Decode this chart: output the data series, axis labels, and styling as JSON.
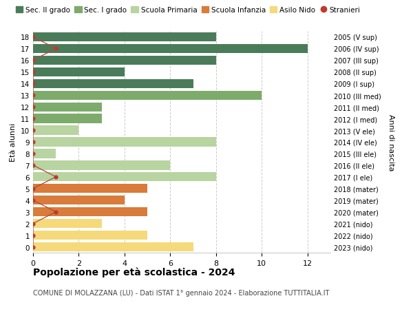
{
  "ages": [
    18,
    17,
    16,
    15,
    14,
    13,
    12,
    11,
    10,
    9,
    8,
    7,
    6,
    5,
    4,
    3,
    2,
    1,
    0
  ],
  "right_labels": [
    "2005 (V sup)",
    "2006 (IV sup)",
    "2007 (III sup)",
    "2008 (II sup)",
    "2009 (I sup)",
    "2010 (III med)",
    "2011 (II med)",
    "2012 (I med)",
    "2013 (V ele)",
    "2014 (IV ele)",
    "2015 (III ele)",
    "2016 (II ele)",
    "2017 (I ele)",
    "2018 (mater)",
    "2019 (mater)",
    "2020 (mater)",
    "2021 (nido)",
    "2022 (nido)",
    "2023 (nido)"
  ],
  "bar_values": [
    8,
    12,
    8,
    4,
    7,
    10,
    3,
    3,
    2,
    8,
    1,
    6,
    8,
    5,
    4,
    5,
    3,
    5,
    7
  ],
  "bar_colors": [
    "#4a7c59",
    "#4a7c59",
    "#4a7c59",
    "#4a7c59",
    "#4a7c59",
    "#7dab6b",
    "#7dab6b",
    "#7dab6b",
    "#b8d4a0",
    "#b8d4a0",
    "#b8d4a0",
    "#b8d4a0",
    "#b8d4a0",
    "#d97b3a",
    "#d97b3a",
    "#d97b3a",
    "#f5d97a",
    "#f5d97a",
    "#f5d97a"
  ],
  "stranieri_x": [
    0,
    1,
    0,
    0,
    0,
    0,
    0,
    0,
    0,
    0,
    0,
    0,
    1,
    0,
    0,
    1,
    0,
    0,
    0
  ],
  "stranieri_color": "#c0392b",
  "stranieri_line_color": "#b5463a",
  "legend_labels": [
    "Sec. II grado",
    "Sec. I grado",
    "Scuola Primaria",
    "Scuola Infanzia",
    "Asilo Nido",
    "Stranieri"
  ],
  "legend_colors": [
    "#4a7c59",
    "#7dab6b",
    "#b8d4a0",
    "#d97b3a",
    "#f5d97a",
    "#c0392b"
  ],
  "title": "Popolazione per età scolastica - 2024",
  "subtitle": "COMUNE DI MOLAZZANA (LU) - Dati ISTAT 1° gennaio 2024 - Elaborazione TUTTITALIA.IT",
  "ylabel_left": "Età alunni",
  "ylabel_right": "Anni di nascita",
  "xlim": [
    0,
    13
  ],
  "xticks": [
    0,
    2,
    4,
    6,
    8,
    10,
    12
  ],
  "background_color": "#ffffff",
  "grid_color": "#cccccc",
  "bar_height": 0.78
}
